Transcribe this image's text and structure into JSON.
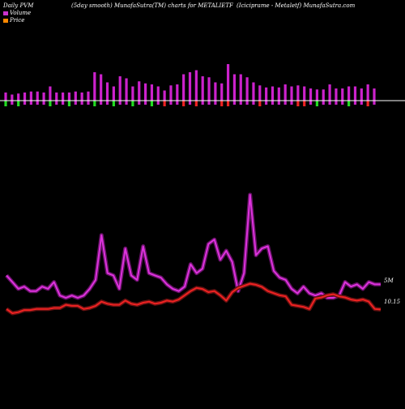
{
  "header": {
    "left": "Daily PVM",
    "middle": "(5day smooth) MunafaSutra(TM) charts for METALIETF",
    "right": "(Iciciprame - Metaletf) MunafaSutra.com"
  },
  "legend": {
    "volume_label": "Volume",
    "price_label": "Price",
    "volume_color": "#cc33cc",
    "price_color": "#ff8800"
  },
  "end_labels": {
    "volume": "5M",
    "price": "10.15"
  },
  "colors": {
    "background": "#000000",
    "axis_line": "#ffffff",
    "bar_up": "#cc22cc",
    "bar_down_green": "#22dd22",
    "bar_down_red": "#ee2222",
    "volume_line": "#dd33dd",
    "price_line": "#ee2222"
  },
  "chart_data": {
    "type": "line",
    "title": "(5day smooth) MunafaSutra(TM) charts for METALIETF",
    "xlabel": "",
    "ylabel": "",
    "grid": false,
    "legend_position": "top-left",
    "volume_smooth": [
      14,
      11,
      8,
      9,
      7,
      7,
      9,
      8,
      11,
      5,
      4,
      5,
      4,
      5,
      8,
      12,
      32,
      15,
      14,
      8,
      26,
      14,
      12,
      27,
      15,
      14,
      13,
      10,
      8,
      7,
      9,
      19,
      15,
      17,
      28,
      30,
      21,
      25,
      20,
      7,
      15,
      50,
      23,
      26,
      27,
      16,
      13,
      12,
      8,
      6,
      9,
      6,
      5,
      6,
      4,
      4,
      5,
      11,
      9,
      10,
      8,
      11,
      10,
      10
    ],
    "price_smooth": [
      10.2,
      9.8,
      9.9,
      10.1,
      10.1,
      10.2,
      10.2,
      10.2,
      10.3,
      10.3,
      10.6,
      10.5,
      10.5,
      10.2,
      10.3,
      10.5,
      10.9,
      10.7,
      10.6,
      10.6,
      11.0,
      10.7,
      10.6,
      10.8,
      10.9,
      10.7,
      10.8,
      11.0,
      10.9,
      11.1,
      11.5,
      11.9,
      12.2,
      12.1,
      11.8,
      11.9,
      11.5,
      11.0,
      11.8,
      12.2,
      12.4,
      12.6,
      12.5,
      12.3,
      11.9,
      11.7,
      11.5,
      11.4,
      10.6,
      10.5,
      10.4,
      10.2,
      11.2,
      11.3,
      11.5,
      11.6,
      11.4,
      11.3,
      11.1,
      11.0,
      11.1,
      10.9,
      10.2,
      10.15
    ],
    "pvm_bars": [
      {
        "v": 8,
        "c": "g"
      },
      {
        "v": 6,
        "c": "m"
      },
      {
        "v": 7,
        "c": "g"
      },
      {
        "v": 8,
        "c": "m"
      },
      {
        "v": 9,
        "c": "m"
      },
      {
        "v": 9,
        "c": "m"
      },
      {
        "v": 8,
        "c": "m"
      },
      {
        "v": 14,
        "c": "g"
      },
      {
        "v": 8,
        "c": "m"
      },
      {
        "v": 8,
        "c": "m"
      },
      {
        "v": 8,
        "c": "g"
      },
      {
        "v": 9,
        "c": "m"
      },
      {
        "v": 8,
        "c": "m"
      },
      {
        "v": 9,
        "c": "m"
      },
      {
        "v": 28,
        "c": "g"
      },
      {
        "v": 26,
        "c": "m"
      },
      {
        "v": 18,
        "c": "m"
      },
      {
        "v": 14,
        "c": "g"
      },
      {
        "v": 24,
        "c": "m"
      },
      {
        "v": 22,
        "c": "m"
      },
      {
        "v": 14,
        "c": "g"
      },
      {
        "v": 19,
        "c": "m"
      },
      {
        "v": 17,
        "c": "m"
      },
      {
        "v": 16,
        "c": "g"
      },
      {
        "v": 14,
        "c": "m"
      },
      {
        "v": 10,
        "c": "r"
      },
      {
        "v": 15,
        "c": "m"
      },
      {
        "v": 16,
        "c": "m"
      },
      {
        "v": 26,
        "c": "r"
      },
      {
        "v": 28,
        "c": "m"
      },
      {
        "v": 30,
        "c": "r"
      },
      {
        "v": 24,
        "c": "m"
      },
      {
        "v": 23,
        "c": "m"
      },
      {
        "v": 18,
        "c": "m"
      },
      {
        "v": 17,
        "c": "r"
      },
      {
        "v": 36,
        "c": "r"
      },
      {
        "v": 26,
        "c": "m"
      },
      {
        "v": 26,
        "c": "m"
      },
      {
        "v": 23,
        "c": "m"
      },
      {
        "v": 18,
        "c": "m"
      },
      {
        "v": 15,
        "c": "r"
      },
      {
        "v": 13,
        "c": "m"
      },
      {
        "v": 14,
        "c": "m"
      },
      {
        "v": 13,
        "c": "m"
      },
      {
        "v": 16,
        "c": "m"
      },
      {
        "v": 14,
        "c": "m"
      },
      {
        "v": 15,
        "c": "r"
      },
      {
        "v": 14,
        "c": "r"
      },
      {
        "v": 12,
        "c": "m"
      },
      {
        "v": 11,
        "c": "g"
      },
      {
        "v": 11,
        "c": "m"
      },
      {
        "v": 16,
        "c": "m"
      },
      {
        "v": 12,
        "c": "m"
      },
      {
        "v": 12,
        "c": "m"
      },
      {
        "v": 14,
        "c": "g"
      },
      {
        "v": 14,
        "c": "m"
      },
      {
        "v": 12,
        "c": "m"
      },
      {
        "v": 16,
        "c": "r"
      },
      {
        "v": 12,
        "c": "m"
      }
    ]
  }
}
